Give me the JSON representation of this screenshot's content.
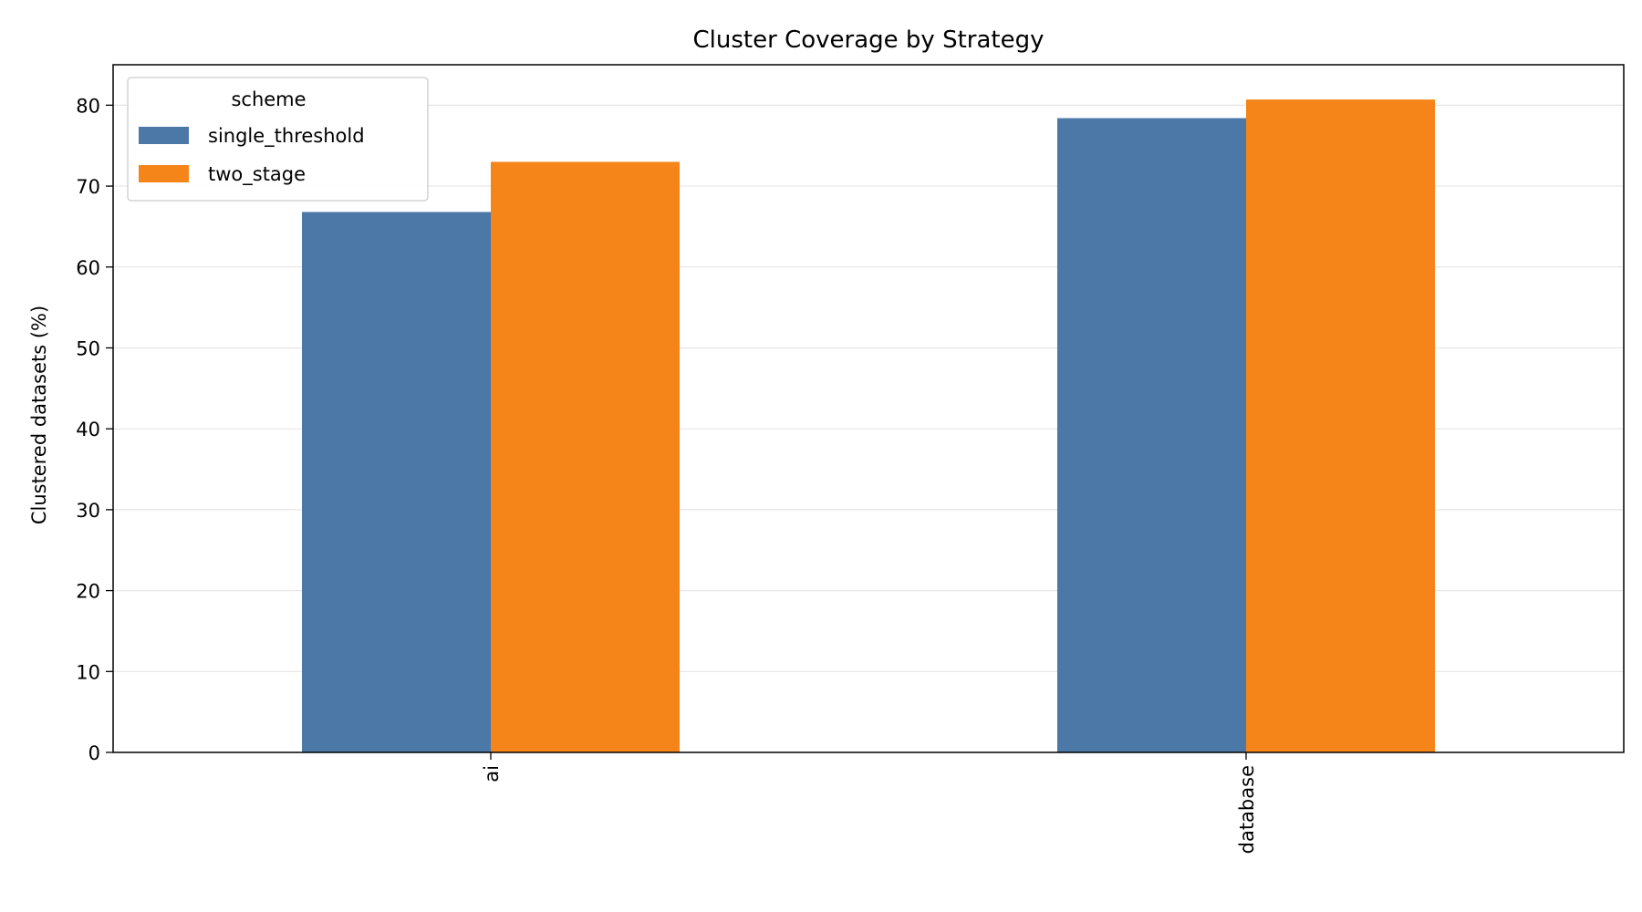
{
  "chart_data": {
    "type": "bar",
    "title": "Cluster Coverage by Strategy",
    "xlabel": "",
    "ylabel": "Clustered datasets (%)",
    "categories": [
      "ai",
      "database"
    ],
    "series": [
      {
        "name": "single_threshold",
        "color": "#4c78a8",
        "values": [
          66.8,
          78.4
        ]
      },
      {
        "name": "two_stage",
        "color": "#f58518",
        "values": [
          73.0,
          80.7
        ]
      }
    ],
    "ylim": [
      0,
      85
    ],
    "yticks": [
      0,
      10,
      20,
      30,
      40,
      50,
      60,
      70,
      80
    ],
    "grid": "y",
    "legend": {
      "title": "scheme",
      "placement": "top-left"
    }
  }
}
